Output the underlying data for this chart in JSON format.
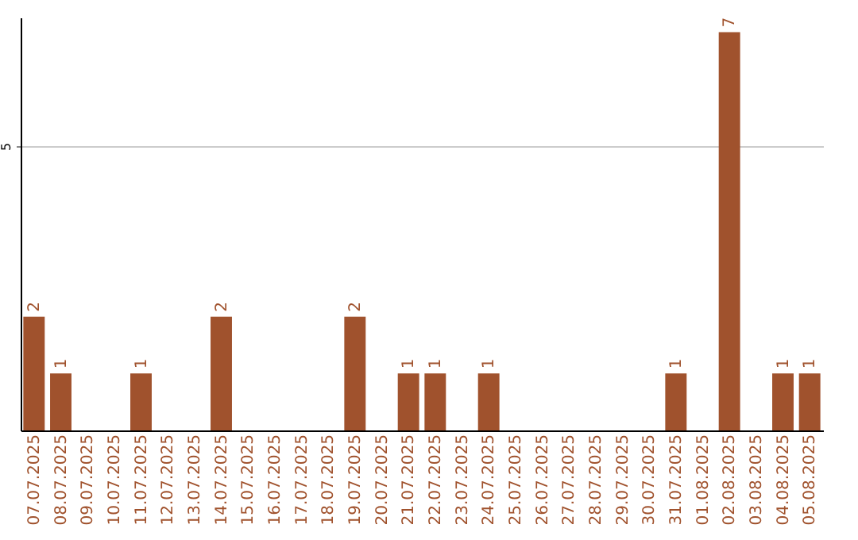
{
  "chart_data": {
    "type": "bar",
    "categories": [
      "07.07.2025",
      "08.07.2025",
      "09.07.2025",
      "10.07.2025",
      "11.07.2025",
      "12.07.2025",
      "13.07.2025",
      "14.07.2025",
      "15.07.2025",
      "16.07.2025",
      "17.07.2025",
      "18.07.2025",
      "19.07.2025",
      "20.07.2025",
      "21.07.2025",
      "22.07.2025",
      "23.07.2025",
      "24.07.2025",
      "25.07.2025",
      "26.07.2025",
      "27.07.2025",
      "28.07.2025",
      "29.07.2025",
      "30.07.2025",
      "31.07.2025",
      "01.08.2025",
      "02.08.2025",
      "03.08.2025",
      "04.08.2025",
      "05.08.2025"
    ],
    "values": [
      2,
      1,
      0,
      0,
      1,
      0,
      0,
      2,
      0,
      0,
      0,
      0,
      2,
      0,
      1,
      1,
      0,
      1,
      0,
      0,
      0,
      0,
      0,
      0,
      1,
      0,
      7,
      0,
      1,
      1
    ],
    "value_labels": [
      "2",
      "1",
      null,
      null,
      "1",
      null,
      null,
      "2",
      null,
      null,
      null,
      null,
      "2",
      null,
      "1",
      "1",
      null,
      "1",
      null,
      null,
      null,
      null,
      null,
      null,
      "1",
      null,
      "7",
      null,
      "1",
      "1"
    ],
    "color": "#a0522d",
    "ylim": [
      0,
      7.26
    ],
    "yticks": [
      5
    ],
    "grid": "y"
  }
}
